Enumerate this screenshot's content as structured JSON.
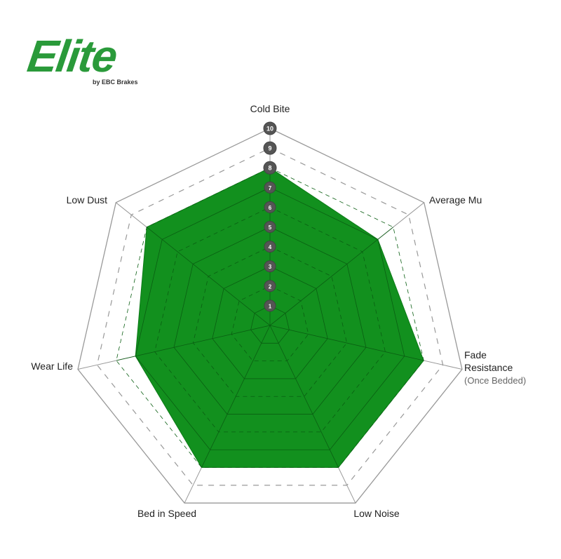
{
  "logo": {
    "text": "Elite",
    "subtitle": "by EBC Brakes"
  },
  "chart_data": {
    "type": "radar",
    "axes": [
      "Cold Bite",
      "Average Mu",
      "Fade Resistance",
      "Low Noise",
      "Bed in Speed",
      "Wear Life",
      "Low Dust"
    ],
    "axis_sublabels": {
      "Fade Resistance": "(Once Bedded)"
    },
    "values": [
      8,
      7,
      8,
      8,
      8,
      7,
      8
    ],
    "range": [
      0,
      10
    ],
    "tick_labels": [
      "1",
      "2",
      "3",
      "4",
      "5",
      "6",
      "7",
      "8",
      "9",
      "10"
    ],
    "fill_color": "#12901e",
    "grid_color": "#999999"
  }
}
